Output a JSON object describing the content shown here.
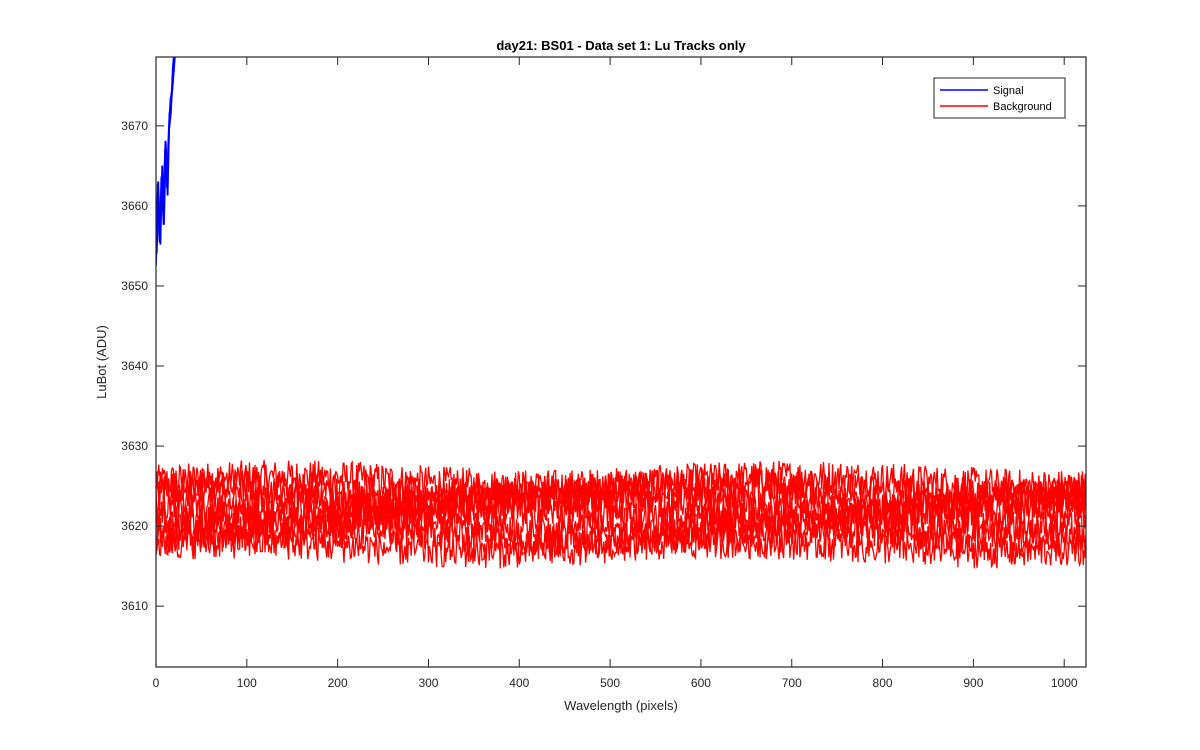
{
  "chart_data": {
    "type": "line",
    "title": "day21: BS01 - Data set 1: Lu Tracks only",
    "xlabel": "Wavelength (pixels)",
    "ylabel": "LuBot (ADU)",
    "xlim": [
      0,
      1024
    ],
    "ylim": [
      3602.4,
      3678.6
    ],
    "xticks": [
      0,
      100,
      200,
      300,
      400,
      500,
      600,
      700,
      800,
      900,
      1000
    ],
    "yticks": [
      3610,
      3620,
      3630,
      3640,
      3650,
      3660,
      3670
    ],
    "grid": false,
    "legend_position": "top-right",
    "series": [
      {
        "name": "Signal",
        "color": "#0000ff",
        "description_range": "rises steeply from ~3654 at x=0 beyond the top of the axes by x~20",
        "x": [
          0,
          2,
          4,
          6,
          8,
          10,
          12,
          14,
          16,
          18,
          20
        ],
        "y": [
          3654,
          3662,
          3655,
          3664,
          3659,
          3667,
          3662,
          3670,
          3672,
          3676,
          3679
        ]
      },
      {
        "name": "Background",
        "color": "#ff0000",
        "traces": 8,
        "x_range": [
          0,
          1024
        ],
        "band_min": 3612.5,
        "band_max": 3628.5,
        "trace_centers": [
          3625.5,
          3624.5,
          3623.5,
          3622.5,
          3621.5,
          3620.0,
          3619.0,
          3617.5
        ],
        "noise_amplitude": 2.2
      }
    ],
    "tick_labels_x": [
      "0",
      "100",
      "200",
      "300",
      "400",
      "500",
      "600",
      "700",
      "800",
      "900",
      "1000"
    ],
    "tick_labels_y": [
      "3610",
      "3620",
      "3630",
      "3640",
      "3650",
      "3660",
      "3670"
    ]
  }
}
